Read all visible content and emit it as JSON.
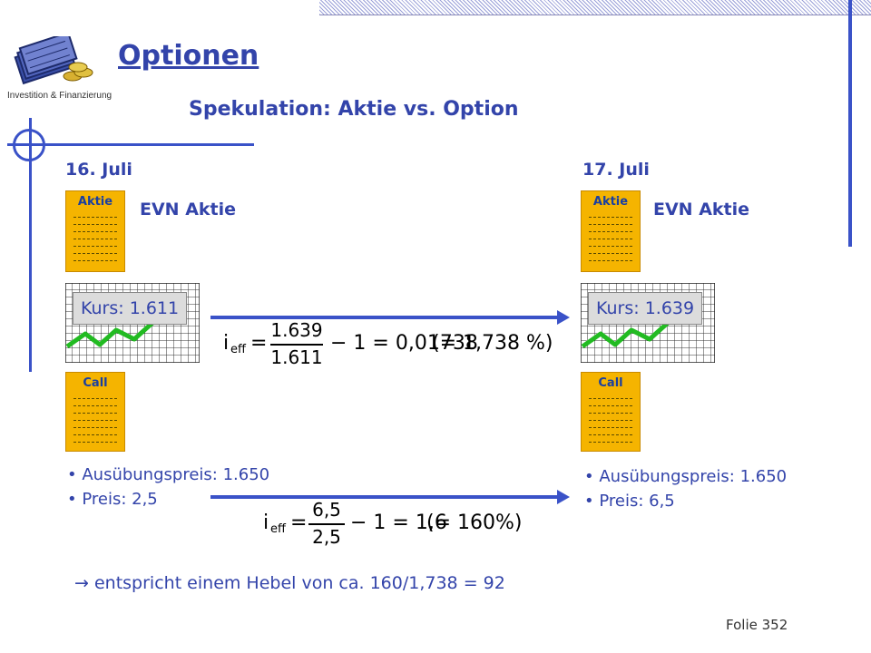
{
  "header": {
    "title": "Optionen",
    "subtitle": "Spekulation: Aktie vs. Option",
    "logo_caption": "Investition & Finanzierung"
  },
  "left": {
    "date": "16. Juli",
    "aktie_doc_label": "Aktie",
    "evn_label": "EVN Aktie",
    "kurs": "Kurs: 1.611",
    "call_doc_label": "Call",
    "bullets": [
      "Ausübungspreis: 1.650",
      "Preis: 2,5"
    ]
  },
  "right": {
    "date": "17. Juli",
    "aktie_doc_label": "Aktie",
    "evn_label": "EVN Aktie",
    "kurs": "Kurs: 1.639",
    "call_doc_label": "Call",
    "bullets": [
      "Ausübungspreis: 1.650",
      "Preis: 6,5"
    ]
  },
  "formula1": {
    "lhs": "i",
    "sub": "eff",
    "eq": "=",
    "num": "1.639",
    "den": "1.611",
    "rest": "− 1 = 0,01738",
    "paren": "(= 1,738 %)"
  },
  "formula2": {
    "lhs": "i",
    "sub": "eff",
    "eq": "=",
    "num": "6,5",
    "den": "2,5",
    "rest": "− 1 = 1,6",
    "paren": "(= 160%)"
  },
  "hebel_text": "entspricht einem Hebel von ca. 160/1,738 = 92",
  "footer": "Folie 352",
  "colors": {
    "accent": "#3344aa",
    "line": "#3a52c8",
    "doc": "#f5b400",
    "chart_line": "#22bb22"
  },
  "icons": {
    "arrow": "right-arrow-icon",
    "implies": "implies-arrow-icon",
    "logo": "money-stack-icon"
  }
}
